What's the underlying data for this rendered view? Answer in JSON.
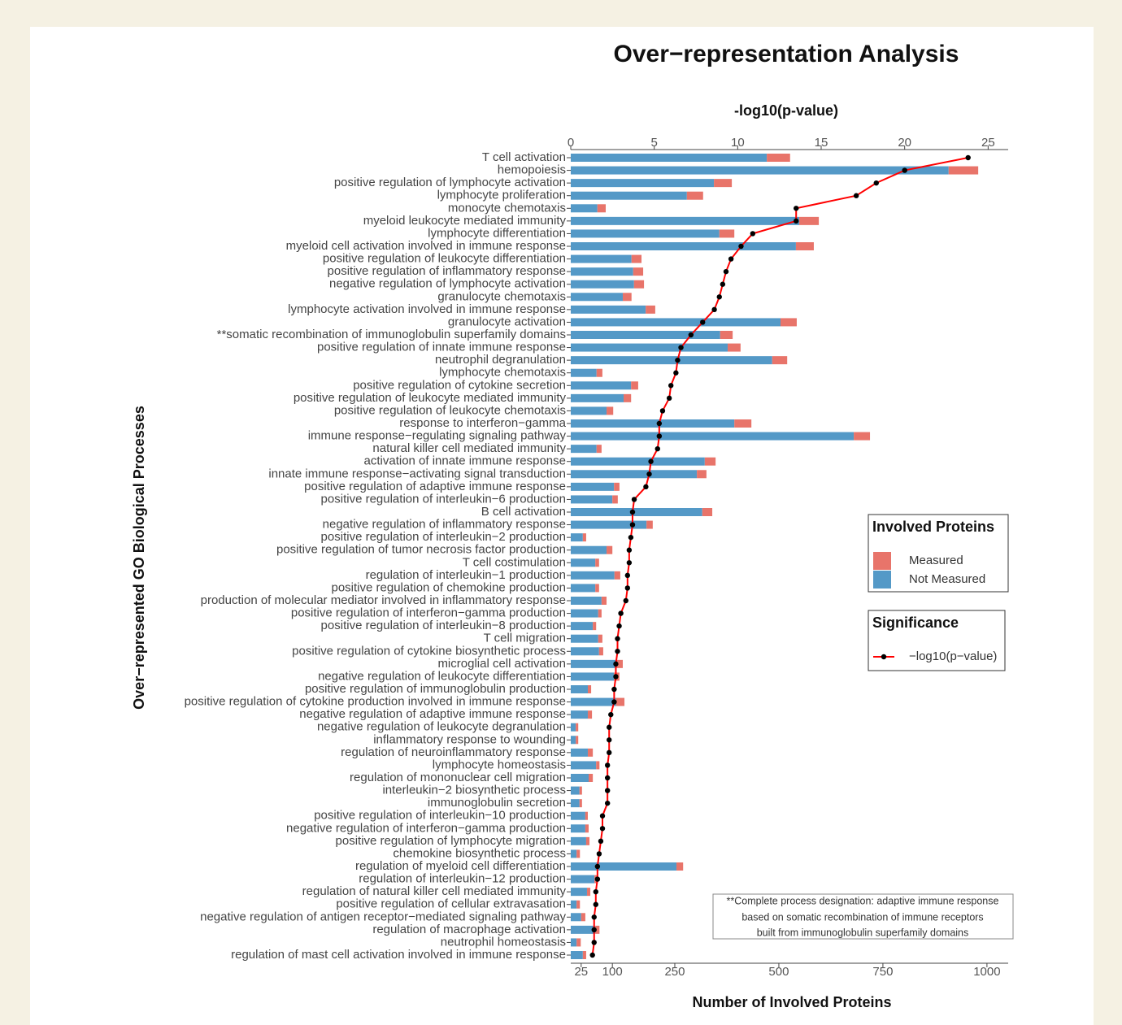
{
  "chart_data": {
    "type": "bar",
    "orientation": "horizontal",
    "stacked": true,
    "title": "Over−representation Analysis",
    "x_label": "Number of Involved Proteins",
    "x2_label": "-log10(p-value)",
    "y_label": "Over−represented GO Biological Processes",
    "categories": [
      "T cell activation",
      "hemopoiesis",
      "positive regulation of lymphocyte activation",
      "lymphocyte proliferation",
      "monocyte chemotaxis",
      "myeloid leukocyte mediated immunity",
      "lymphocyte differentiation",
      "myeloid cell activation involved in immune response",
      "positive regulation of leukocyte differentiation",
      "positive regulation of inflammatory response",
      "negative regulation of lymphocyte activation",
      "granulocyte chemotaxis",
      "lymphocyte activation involved in immune response",
      "granulocyte activation",
      "**somatic recombination of immunoglobulin superfamily domains",
      "positive regulation of innate immune response",
      "neutrophil degranulation",
      "lymphocyte chemotaxis",
      "positive regulation of cytokine secretion",
      "positive regulation of leukocyte mediated immunity",
      "positive regulation of leukocyte chemotaxis",
      "response to interferon−gamma",
      "immune response−regulating signaling pathway",
      "natural killer cell mediated immunity",
      "activation of innate immune response",
      "innate immune response−activating signal transduction",
      "positive regulation of adaptive immune response",
      "positive regulation of interleukin−6 production",
      "B cell activation",
      "negative regulation of inflammatory response",
      "positive regulation of interleukin−2 production",
      "positive regulation of tumor necrosis factor production",
      "T cell costimulation",
      "regulation of interleukin−1 production",
      "positive regulation of chemokine production",
      "production of molecular mediator involved in inflammatory response",
      "positive regulation of interferon−gamma production",
      "positive regulation of interleukin−8 production",
      "T cell migration",
      "positive regulation of cytokine biosynthetic process",
      "microglial cell activation",
      "negative regulation of leukocyte differentiation",
      "positive regulation of immunoglobulin production",
      "positive regulation of cytokine production involved in immune response",
      "negative regulation of adaptive immune response",
      "negative regulation of leukocyte degranulation",
      "inflammatory response to wounding",
      "regulation of neuroinflammatory response",
      "lymphocyte homeostasis",
      "regulation of mononuclear cell migration",
      "interleukin−2 biosynthetic process",
      "immunoglobulin secretion",
      "positive regulation of interleukin−10 production",
      "negative regulation of interferon−gamma production",
      "positive regulation of lymphocyte migration",
      "chemokine biosynthetic process",
      "regulation of myeloid cell differentiation",
      "regulation of interleukin−12 production",
      "regulation of natural killer cell mediated immunity",
      "positive regulation of cellular extravasation",
      "negative regulation of antigen receptor−mediated signaling pathway",
      "regulation of macrophage activation",
      "neutrophil homeostasis",
      "regulation of mast cell activation involved in immune response"
    ],
    "series": [
      {
        "name": "Not Measured",
        "color": "#5499c7",
        "values": [
          471,
          908,
          344,
          279,
          64,
          549,
          357,
          541,
          146,
          150,
          152,
          125,
          180,
          504,
          359,
          377,
          484,
          62,
          145,
          127,
          86,
          393,
          680,
          62,
          322,
          303,
          104,
          100,
          316,
          182,
          29,
          86,
          59,
          105,
          59,
          74,
          66,
          53,
          66,
          68,
          109,
          104,
          41,
          109,
          41,
          12,
          12,
          41,
          61,
          43,
          21,
          21,
          35,
          35,
          37,
          14,
          254,
          57,
          39,
          14,
          25,
          59,
          14,
          29
        ]
      },
      {
        "name": "Measured",
        "color": "#e8746a",
        "values": [
          56,
          71,
          43,
          39,
          20,
          47,
          36,
          43,
          24,
          24,
          24,
          21,
          23,
          39,
          30,
          31,
          36,
          14,
          17,
          18,
          16,
          41,
          39,
          12,
          26,
          23,
          13,
          13,
          24,
          15,
          8,
          14,
          9,
          14,
          9,
          12,
          8,
          8,
          10,
          10,
          16,
          13,
          8,
          20,
          10,
          6,
          6,
          12,
          8,
          10,
          6,
          6,
          6,
          8,
          8,
          8,
          16,
          8,
          8,
          8,
          10,
          10,
          10,
          8
        ]
      },
      {
        "name": "−log10(p−value)",
        "type": "line",
        "axis": "x2",
        "color": "#ff0000",
        "values": [
          23.8,
          20.0,
          18.3,
          17.1,
          13.5,
          13.5,
          10.9,
          10.2,
          9.6,
          9.3,
          9.1,
          8.9,
          8.6,
          7.9,
          7.2,
          6.6,
          6.4,
          6.3,
          6.0,
          5.9,
          5.5,
          5.3,
          5.3,
          5.2,
          4.8,
          4.7,
          4.5,
          3.8,
          3.7,
          3.7,
          3.6,
          3.5,
          3.5,
          3.4,
          3.4,
          3.3,
          3.0,
          2.9,
          2.8,
          2.8,
          2.7,
          2.7,
          2.6,
          2.6,
          2.4,
          2.3,
          2.3,
          2.3,
          2.2,
          2.2,
          2.2,
          2.2,
          1.9,
          1.9,
          1.8,
          1.7,
          1.6,
          1.6,
          1.5,
          1.5,
          1.4,
          1.4,
          1.4,
          1.3
        ]
      }
    ],
    "xlim": [
      0,
      1051
    ],
    "xticks": [
      25,
      100,
      250,
      500,
      750,
      1000
    ],
    "x2lim": [
      0,
      26.2
    ],
    "x2ticks": [
      0,
      5,
      10,
      15,
      20,
      25
    ],
    "legend_titles": [
      "Involved Proteins",
      "Significance"
    ],
    "legend_position": "right",
    "annotation": [
      "**Complete process designation: adaptive immune response",
      "based on somatic recombination of immune receptors",
      "built from immunoglobulin superfamily domains"
    ]
  }
}
